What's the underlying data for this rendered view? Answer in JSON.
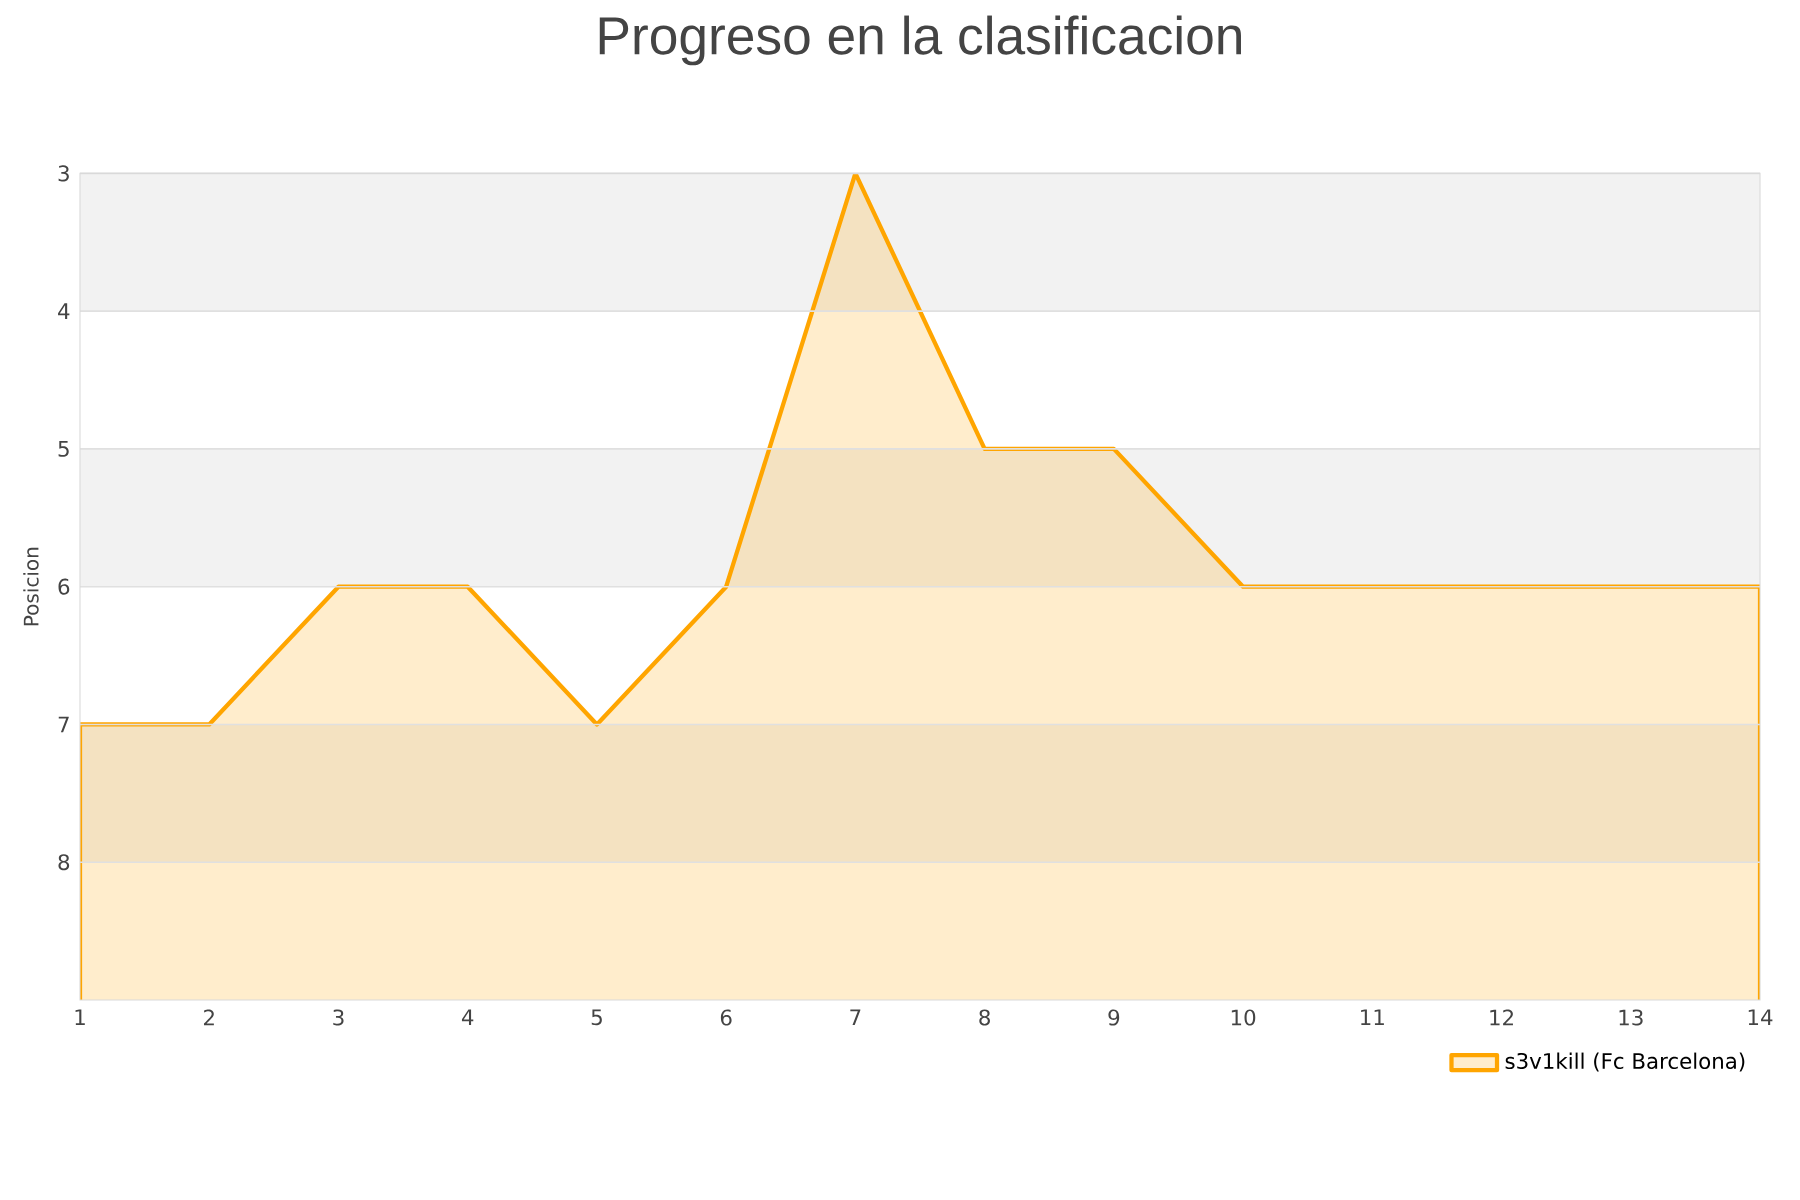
{
  "chart_data": {
    "type": "area",
    "title": "Progreso en la clasificacion",
    "ylabel": "Posicion",
    "x": [
      1,
      2,
      3,
      4,
      5,
      6,
      7,
      8,
      9,
      10,
      11,
      12,
      13,
      14
    ],
    "series": [
      {
        "name": "s3v1kill (Fc Barcelona)",
        "color": "#ffa500",
        "values": [
          7,
          7,
          6,
          6,
          7,
          6,
          3,
          5,
          5,
          6,
          6,
          6,
          6,
          6
        ]
      }
    ],
    "xlim": [
      1,
      14
    ],
    "ylim": [
      9,
      3
    ],
    "xticks": [
      1,
      2,
      3,
      4,
      5,
      6,
      7,
      8,
      9,
      10,
      11,
      12,
      13,
      14
    ],
    "yticks": [
      3,
      4,
      5,
      6,
      7,
      8
    ],
    "bands": [
      {
        "axis": "y",
        "from": 3,
        "to": 4,
        "color": "#f2f2f2"
      },
      {
        "axis": "y",
        "from": 5,
        "to": 6,
        "color": "#f2f2f2"
      },
      {
        "axis": "y",
        "from": 7,
        "to": 8,
        "color": "#f2f2f2"
      }
    ],
    "grid": "y",
    "legend": "bottom right",
    "marker": "none",
    "line_style": "solid"
  }
}
